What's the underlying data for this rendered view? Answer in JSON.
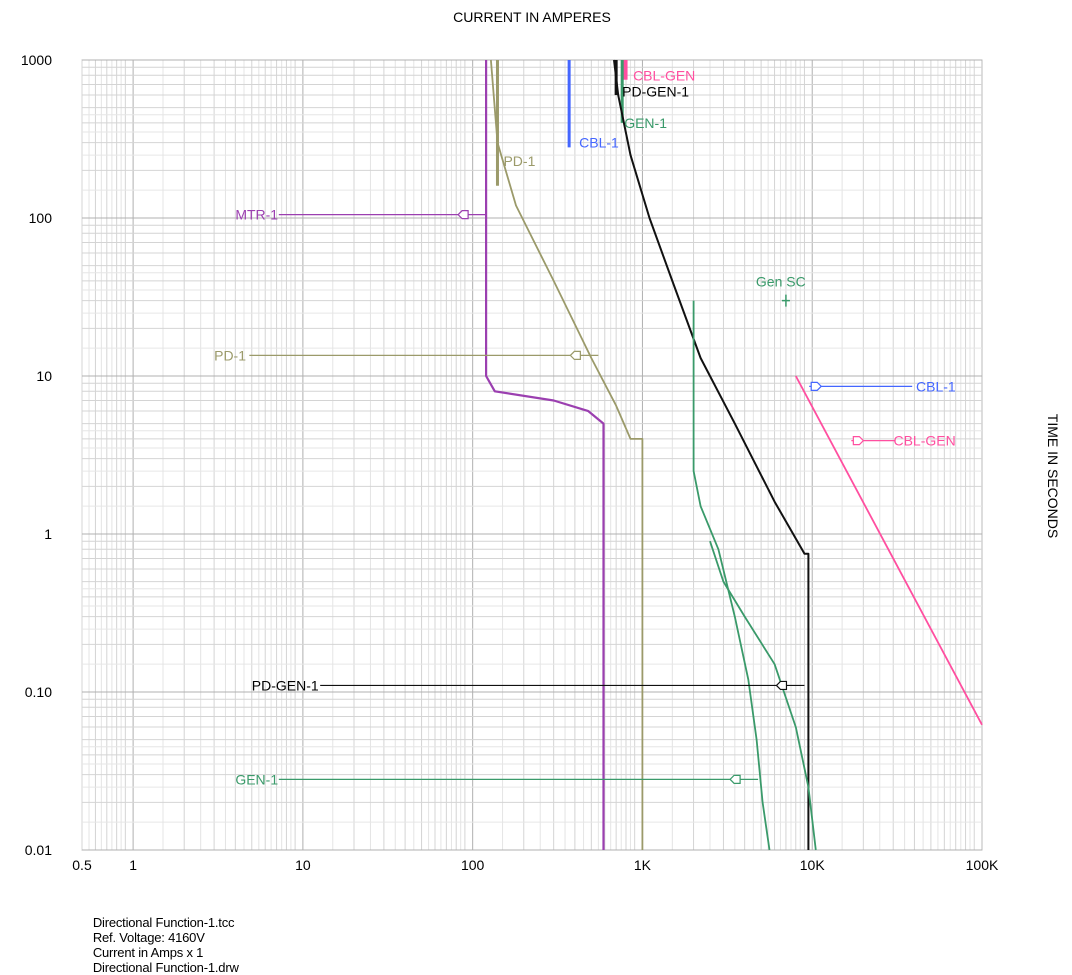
{
  "chart_data": {
    "type": "line",
    "title": "CURRENT IN AMPERES",
    "xlabel": "CURRENT IN AMPERES",
    "ylabel": "TIME IN SECONDS",
    "x_scale": "log",
    "y_scale": "log",
    "xlim": [
      0.5,
      100000
    ],
    "ylim": [
      0.01,
      1000
    ],
    "grid": true,
    "x_ticks": [
      {
        "value": 0.5,
        "label": "0.5"
      },
      {
        "value": 1,
        "label": "1"
      },
      {
        "value": 10,
        "label": "10"
      },
      {
        "value": 100,
        "label": "100"
      },
      {
        "value": 1000,
        "label": "1K"
      },
      {
        "value": 10000,
        "label": "10K"
      },
      {
        "value": 100000,
        "label": "100K"
      }
    ],
    "y_ticks": [
      {
        "value": 0.01,
        "label": "0.01"
      },
      {
        "value": 0.1,
        "label": "0.10"
      },
      {
        "value": 1,
        "label": "1"
      },
      {
        "value": 10,
        "label": "10"
      },
      {
        "value": 100,
        "label": "100"
      },
      {
        "value": 1000,
        "label": "1000"
      }
    ],
    "series": [
      {
        "name": "MTR-1",
        "color": "#9b3fb0",
        "points": [
          [
            120,
            1000
          ],
          [
            120,
            10
          ],
          [
            135,
            8
          ],
          [
            300,
            7
          ],
          [
            480,
            6
          ],
          [
            590,
            5
          ],
          [
            590,
            0.01
          ]
        ],
        "callout": {
          "label": "MTR-1",
          "y": 105,
          "label_x": 4,
          "arrow_x": 120
        }
      },
      {
        "name": "PD-1",
        "color": "#9b9a6a",
        "points": [
          [
            128,
            1000
          ],
          [
            140,
            300
          ],
          [
            180,
            120
          ],
          [
            300,
            40
          ],
          [
            500,
            13
          ],
          [
            700,
            6.5
          ],
          [
            850,
            4
          ],
          [
            1000,
            4
          ],
          [
            1000,
            0.01
          ]
        ],
        "callout": {
          "label": "PD-1",
          "y": 13.5,
          "label_x": 3,
          "arrow_x": 550
        }
      },
      {
        "name": "PD-GEN-1",
        "color": "#111111",
        "points": [
          [
            680,
            1000
          ],
          [
            720,
            600
          ],
          [
            850,
            250
          ],
          [
            1100,
            100
          ],
          [
            1500,
            40
          ],
          [
            2200,
            13
          ],
          [
            3500,
            5
          ],
          [
            6000,
            1.6
          ],
          [
            9000,
            0.75
          ],
          [
            9500,
            0.75
          ],
          [
            9500,
            0.01
          ]
        ],
        "callout": {
          "label": "PD-GEN-1",
          "y": 0.11,
          "label_x": 5,
          "arrow_x": 9000
        }
      },
      {
        "name": "GEN-1 (curve A)",
        "color": "#3a9a6a",
        "points": [
          [
            2000,
            30
          ],
          [
            2000,
            2.5
          ],
          [
            2200,
            1.5
          ],
          [
            2800,
            0.8
          ],
          [
            3500,
            0.3
          ],
          [
            4200,
            0.12
          ],
          [
            4700,
            0.05
          ],
          [
            5100,
            0.02
          ],
          [
            5600,
            0.01
          ]
        ],
        "callout": null
      },
      {
        "name": "GEN-1 (curve B)",
        "color": "#3a9a6a",
        "points": [
          [
            2500,
            0.9
          ],
          [
            3000,
            0.5
          ],
          [
            4000,
            0.3
          ],
          [
            6000,
            0.15
          ],
          [
            8000,
            0.06
          ],
          [
            9500,
            0.025
          ],
          [
            10500,
            0.01
          ]
        ],
        "callout": {
          "label": "GEN-1",
          "y": 0.028,
          "label_x": 4,
          "arrow_x": 4800
        }
      },
      {
        "name": "CBL-GEN",
        "color": "#ff4fa0",
        "points": [
          [
            8000,
            10
          ],
          [
            100000,
            0.062
          ]
        ],
        "callout": {
          "label": "CBL-GEN",
          "y": 3.9,
          "label_x": 70000,
          "arrow_x": 17000
        }
      },
      {
        "name": "CBL-1",
        "color": "#4466ff",
        "points": [],
        "callout": {
          "label": "CBL-1",
          "y": 8.6,
          "label_x": 70000,
          "arrow_x": 9600
        }
      }
    ],
    "damage_bars": [
      {
        "label": "CBL-1",
        "x": 370,
        "y_from": 280,
        "y_to": 1000,
        "color": "#4466ff"
      },
      {
        "label": "CBL-GEN",
        "x": 790,
        "y_from": 750,
        "y_to": 1000,
        "color": "#ff4fa0"
      },
      {
        "label": "PD-GEN-1",
        "x": 700,
        "y_from": 600,
        "y_to": 1000,
        "color": "#111111"
      },
      {
        "label": "GEN-1",
        "x": 760,
        "y_from": 400,
        "y_to": 1000,
        "color": "#3a9a6a"
      },
      {
        "label": "PD-1",
        "x": 140,
        "y_from": 160,
        "y_to": 1000,
        "color": "#9b9a6a"
      }
    ],
    "annotations": [
      {
        "label": "Gen SC",
        "x": 7000,
        "y": 30,
        "color": "#3a9a6a"
      }
    ]
  },
  "footer": {
    "tcc_file": "Directional Function-1.tcc",
    "ref_voltage": "Ref. Voltage: 4160V",
    "current_scale": "Current in Amps x 1",
    "drawing_file": "Directional Function-1.drw"
  }
}
